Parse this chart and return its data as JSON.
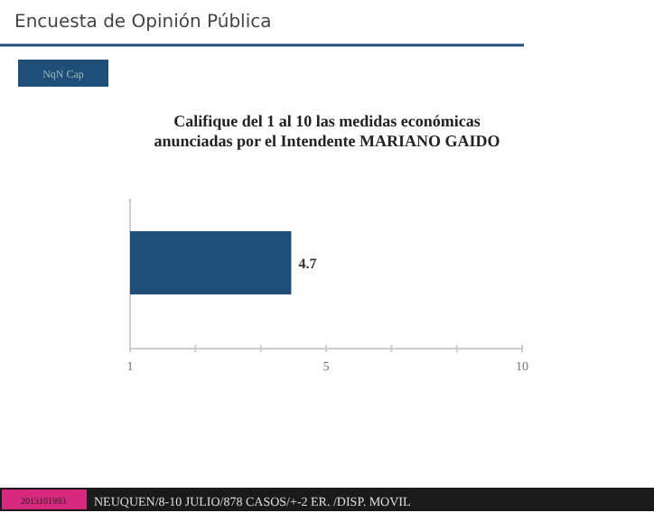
{
  "chart_data": {
    "type": "bar",
    "orientation": "horizontal",
    "title": "Califique del 1 al 10 las medidas económicas\nanunciadas por el Intendente MARIANO GAIDO",
    "categories": [
      null
    ],
    "values": [
      4.7
    ],
    "color": "#1f4e79",
    "data_labels": true,
    "xlim": [
      1,
      10
    ],
    "xticks": [
      1,
      {
        "value": 2.5,
        "label": null
      },
      {
        "value": 4,
        "label": null
      },
      {
        "value": 5.5,
        "label": "5"
      },
      {
        "value": 7,
        "label": null
      },
      {
        "value": 8.5,
        "label": null
      },
      10
    ],
    "annotations": [
      "Encuesta de Opinión Pública",
      "NqN Cap",
      "2013101993",
      "NEUQUEN/8-10 JULIO/878 CASOS/+-2 ER. /DISP. MOVIL"
    ]
  }
}
